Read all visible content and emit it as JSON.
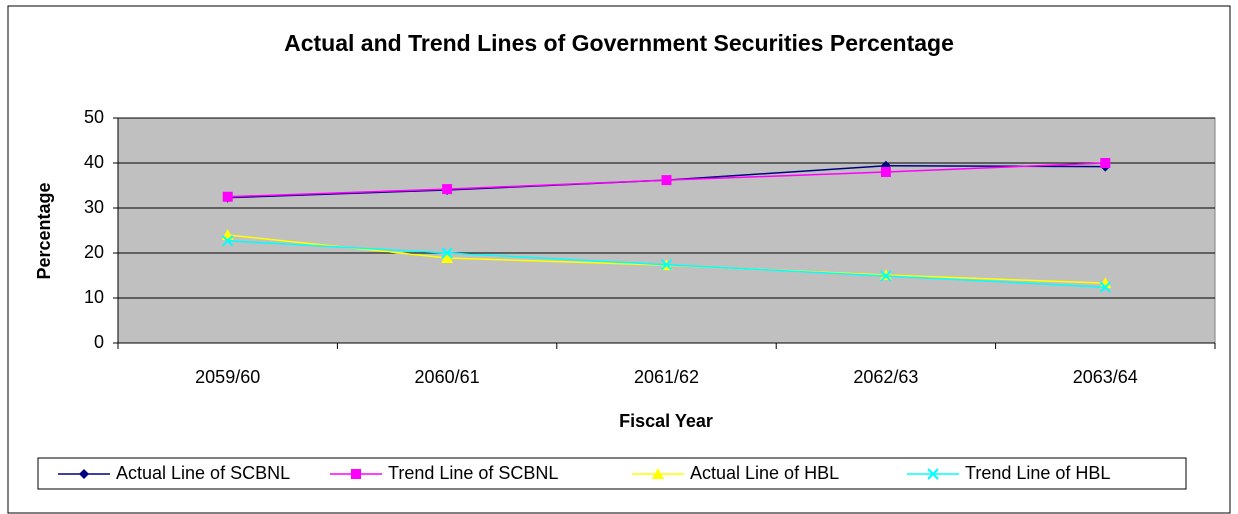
{
  "chart_data": {
    "type": "line",
    "title": "Actual and Trend Lines of Government Securities Percentage",
    "x_label": "Fiscal Year",
    "y_label": "Percentage",
    "categories": [
      "2059/60",
      "2060/61",
      "2061/62",
      "2062/63",
      "2063/64"
    ],
    "series": [
      {
        "name": "Actual Line of SCBNL",
        "color": "#000080",
        "marker": "diamond",
        "values": [
          32.3,
          34,
          36.2,
          39.4,
          39.2
        ]
      },
      {
        "name": "Trend Line of SCBNL",
        "color": "#ff00ff",
        "marker": "square",
        "values": [
          32.5,
          34.2,
          36.2,
          38,
          40
        ]
      },
      {
        "name": "Actual Line of HBL",
        "color": "#ffff00",
        "marker": "triangle",
        "values": [
          24,
          18.9,
          17.3,
          15.1,
          13.3
        ]
      },
      {
        "name": "Trend Line of HBL",
        "color": "#00ffff",
        "marker": "x",
        "values": [
          22.7,
          20,
          17.4,
          14.9,
          12.4
        ]
      }
    ],
    "ylim": [
      0,
      50
    ],
    "yticks": [
      0,
      10,
      20,
      30,
      40,
      50
    ],
    "grid": true,
    "legend": "bottom"
  }
}
